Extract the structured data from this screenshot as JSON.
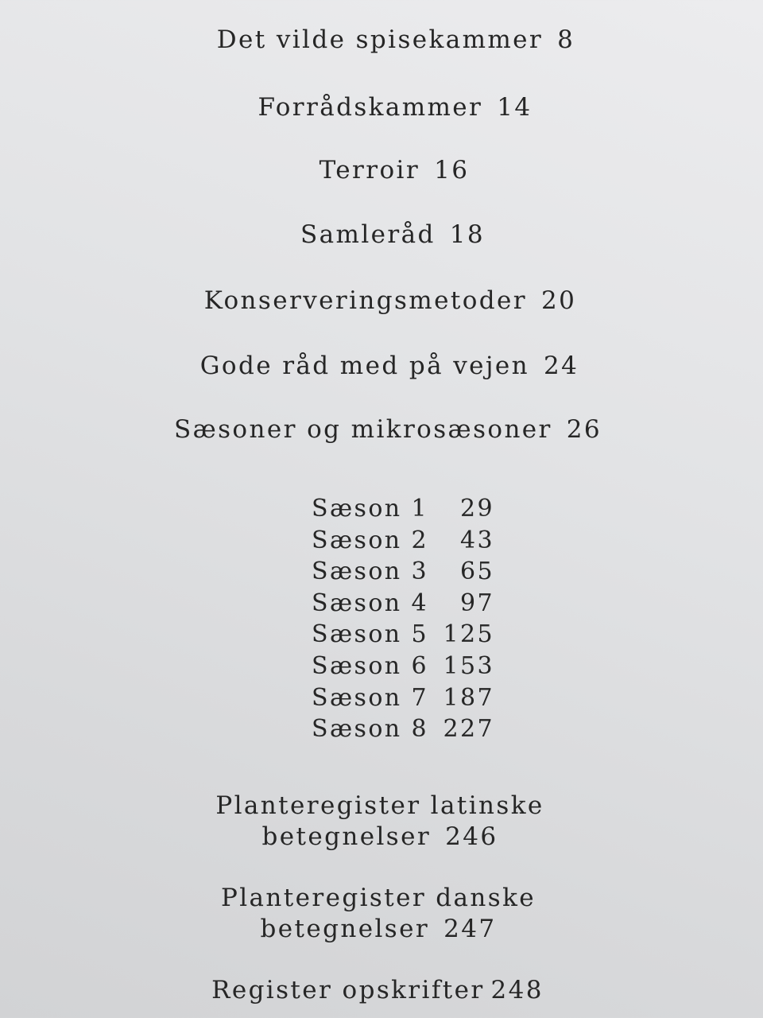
{
  "main_entries": [
    {
      "title": "Det vilde spisekammer",
      "page": "8"
    },
    {
      "title": "Forrådskammer",
      "page": "14"
    },
    {
      "title": "Terroir",
      "page": "16"
    },
    {
      "title": "Samleråd",
      "page": "18"
    },
    {
      "title": "Konserveringsmetoder",
      "page": "20"
    },
    {
      "title": "Gode råd med på vejen",
      "page": "24"
    },
    {
      "title": "Sæsoner og mikrosæsoner",
      "page": "26"
    }
  ],
  "seasons": [
    {
      "title": "Sæson 1",
      "page": "29"
    },
    {
      "title": "Sæson 2",
      "page": "43"
    },
    {
      "title": "Sæson 3",
      "page": "65"
    },
    {
      "title": "Sæson 4",
      "page": "97"
    },
    {
      "title": "Sæson 5",
      "page": "125"
    },
    {
      "title": "Sæson 6",
      "page": "153"
    },
    {
      "title": "Sæson 7",
      "page": "187"
    },
    {
      "title": "Sæson 8",
      "page": "227"
    }
  ],
  "indexes": [
    {
      "line1": "Planteregister latinske",
      "line2": "betegnelser",
      "page": "246"
    },
    {
      "line1": "Planteregister danske",
      "line2": "betegnelser",
      "page": "247"
    },
    {
      "line1": "Register opskrifter",
      "page": "248"
    }
  ]
}
